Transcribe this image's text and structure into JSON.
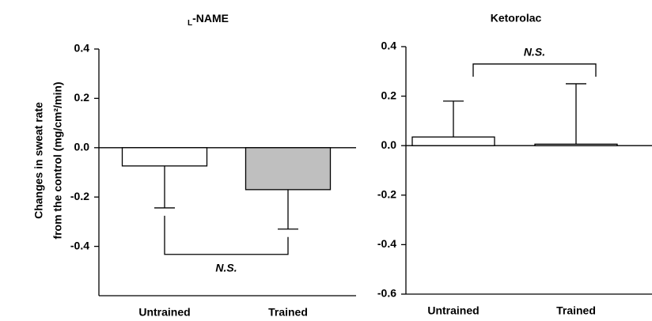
{
  "chart_data": [
    {
      "type": "bar",
      "title": "L-NAME",
      "ylabel": [
        "Changes in sweat rate",
        "from the control (mg/cm²/min)"
      ],
      "categories": [
        "Untrained",
        "Trained"
      ],
      "values": [
        -0.074,
        -0.17
      ],
      "errors": [
        0.17,
        0.16
      ],
      "colors": [
        "#ffffff",
        "#bfbfbf"
      ],
      "ylim": [
        -0.6,
        0.4
      ],
      "yticks": [
        -0.4,
        -0.2,
        {
          "value": 0,
          "label": "0.0"
        },
        0.2,
        0.4
      ],
      "annotation": "N.S."
    },
    {
      "type": "bar",
      "title": "Ketorolac",
      "categories": [
        "Untrained",
        "Trained"
      ],
      "values": [
        0.035,
        0.006
      ],
      "errors": [
        0.145,
        0.244
      ],
      "colors": [
        "#ffffff",
        "#ffffff"
      ],
      "ylim": [
        -0.6,
        0.4
      ],
      "yticks": [
        -0.6,
        -0.4,
        -0.2,
        {
          "value": 0,
          "label": "0.0"
        },
        0.2,
        0.4
      ],
      "annotation": "N.S."
    }
  ]
}
